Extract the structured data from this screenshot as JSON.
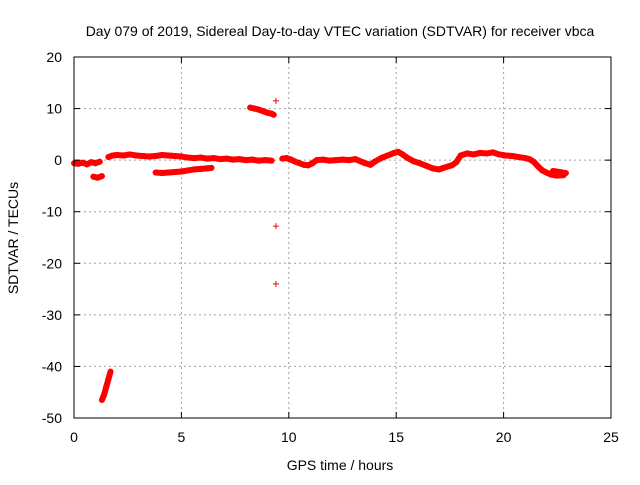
{
  "chart_data": {
    "type": "scatter",
    "title": "Day 079 of 2019, Sidereal Day-to-day VTEC variation (SDTVAR) for receiver vbca",
    "xlabel": "GPS time / hours",
    "ylabel": "SDTVAR / TECUs",
    "xlim": [
      0,
      25
    ],
    "ylim": [
      -50,
      20
    ],
    "xticks": [
      0,
      5,
      10,
      15,
      20,
      25
    ],
    "yticks": [
      -50,
      -40,
      -30,
      -20,
      -10,
      0,
      10,
      20
    ],
    "xtick_labels": [
      "0",
      "5",
      "10",
      "15",
      "20",
      "25"
    ],
    "ytick_labels": [
      "-50",
      "-40",
      "-30",
      "-20",
      "-10",
      "0",
      "10",
      "20"
    ],
    "grid": true,
    "legend": "none",
    "marker": "+",
    "series_color": "#ff0000",
    "series": [
      {
        "name": "SDTVAR vbca",
        "points": [
          [
            0.0,
            -0.6
          ],
          [
            0.2,
            -0.7
          ],
          [
            0.4,
            -0.5
          ],
          [
            0.6,
            -0.8
          ],
          [
            0.8,
            -0.4
          ],
          [
            1.0,
            -0.6
          ],
          [
            1.2,
            -0.3
          ],
          [
            0.9,
            -3.2
          ],
          [
            1.1,
            -3.4
          ],
          [
            1.3,
            -3.1
          ],
          [
            1.3,
            -46.5
          ],
          [
            1.4,
            -45.5
          ],
          [
            1.5,
            -44.0
          ],
          [
            1.6,
            -42.5
          ],
          [
            1.7,
            -41.0
          ],
          [
            1.6,
            0.6
          ],
          [
            1.8,
            0.9
          ],
          [
            2.0,
            1.0
          ],
          [
            2.3,
            0.9
          ],
          [
            2.6,
            1.1
          ],
          [
            2.9,
            0.9
          ],
          [
            3.2,
            0.8
          ],
          [
            3.5,
            0.7
          ],
          [
            3.8,
            0.8
          ],
          [
            4.1,
            1.0
          ],
          [
            4.4,
            0.9
          ],
          [
            4.7,
            0.8
          ],
          [
            5.0,
            0.7
          ],
          [
            5.3,
            0.5
          ],
          [
            5.6,
            0.4
          ],
          [
            5.9,
            0.5
          ],
          [
            6.2,
            0.3
          ],
          [
            6.5,
            0.4
          ],
          [
            6.8,
            0.2
          ],
          [
            7.1,
            0.3
          ],
          [
            7.4,
            0.1
          ],
          [
            7.7,
            0.2
          ],
          [
            8.0,
            0.0
          ],
          [
            8.3,
            0.1
          ],
          [
            8.6,
            -0.1
          ],
          [
            8.9,
            0.0
          ],
          [
            9.2,
            -0.1
          ],
          [
            3.8,
            -2.4
          ],
          [
            4.1,
            -2.5
          ],
          [
            4.4,
            -2.4
          ],
          [
            4.7,
            -2.3
          ],
          [
            5.0,
            -2.2
          ],
          [
            5.3,
            -2.0
          ],
          [
            5.6,
            -1.8
          ],
          [
            5.9,
            -1.7
          ],
          [
            6.2,
            -1.6
          ],
          [
            6.4,
            -1.5
          ],
          [
            8.2,
            10.2
          ],
          [
            8.4,
            10.0
          ],
          [
            8.6,
            9.8
          ],
          [
            8.8,
            9.5
          ],
          [
            9.0,
            9.2
          ],
          [
            9.2,
            9.0
          ],
          [
            9.3,
            8.8
          ],
          [
            9.4,
            11.5
          ],
          [
            9.4,
            -12.8
          ],
          [
            9.4,
            -24.0
          ],
          [
            9.7,
            0.3
          ],
          [
            9.9,
            0.4
          ],
          [
            10.1,
            0.1
          ],
          [
            10.3,
            -0.3
          ],
          [
            10.5,
            -0.6
          ],
          [
            10.7,
            -0.9
          ],
          [
            10.9,
            -1.0
          ],
          [
            11.1,
            -0.6
          ],
          [
            11.3,
            0.0
          ],
          [
            11.6,
            0.1
          ],
          [
            11.9,
            -0.1
          ],
          [
            12.2,
            0.0
          ],
          [
            12.5,
            0.1
          ],
          [
            12.8,
            0.0
          ],
          [
            13.1,
            0.2
          ],
          [
            13.5,
            -0.5
          ],
          [
            13.8,
            -0.9
          ],
          [
            14.0,
            -0.3
          ],
          [
            14.3,
            0.4
          ],
          [
            14.6,
            0.9
          ],
          [
            14.9,
            1.4
          ],
          [
            15.1,
            1.6
          ],
          [
            15.3,
            1.1
          ],
          [
            15.5,
            0.5
          ],
          [
            15.8,
            -0.2
          ],
          [
            16.1,
            -0.6
          ],
          [
            16.4,
            -1.1
          ],
          [
            16.7,
            -1.6
          ],
          [
            17.0,
            -1.8
          ],
          [
            17.2,
            -1.5
          ],
          [
            17.6,
            -1.0
          ],
          [
            17.8,
            -0.4
          ],
          [
            18.0,
            0.9
          ],
          [
            18.3,
            1.3
          ],
          [
            18.6,
            1.1
          ],
          [
            18.9,
            1.4
          ],
          [
            19.2,
            1.3
          ],
          [
            19.5,
            1.5
          ],
          [
            19.8,
            1.1
          ],
          [
            20.1,
            0.9
          ],
          [
            20.4,
            0.8
          ],
          [
            20.7,
            0.6
          ],
          [
            21.0,
            0.4
          ],
          [
            21.2,
            0.2
          ],
          [
            21.4,
            -0.3
          ],
          [
            21.6,
            -1.2
          ],
          [
            21.8,
            -2.0
          ],
          [
            22.0,
            -2.4
          ],
          [
            22.2,
            -2.8
          ],
          [
            22.5,
            -3.0
          ],
          [
            22.8,
            -2.9
          ],
          [
            22.3,
            -2.1
          ],
          [
            22.6,
            -2.3
          ],
          [
            22.9,
            -2.5
          ]
        ]
      }
    ]
  }
}
